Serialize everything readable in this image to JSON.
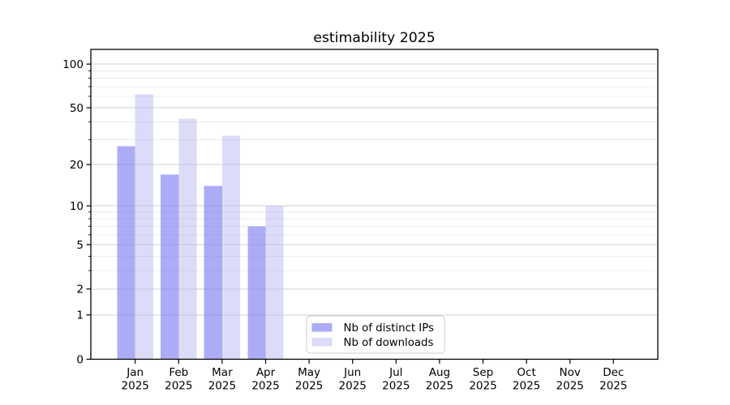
{
  "figure": {
    "title": "estimability 2025",
    "background": "#ffffff"
  },
  "chart_data": {
    "type": "bar",
    "title": "estimability 2025",
    "year": "2025",
    "categories": [
      "Jan",
      "Feb",
      "Mar",
      "Apr",
      "May",
      "Jun",
      "Jul",
      "Aug",
      "Sep",
      "Oct",
      "Nov",
      "Dec"
    ],
    "series": [
      {
        "name": "Nb of distinct IPs",
        "color": "rgba(127,127,241,0.65)",
        "values": [
          27,
          17,
          14,
          7,
          0,
          0,
          0,
          0,
          0,
          0,
          0,
          0
        ]
      },
      {
        "name": "Nb of downloads",
        "color": "rgba(177,177,240,0.45)",
        "values": [
          62,
          42,
          32,
          10,
          0,
          0,
          0,
          0,
          0,
          0,
          0,
          0
        ]
      }
    ],
    "yscale": "log1p",
    "ylim": [
      0,
      126
    ],
    "yticks": [
      0,
      1,
      2,
      5,
      10,
      20,
      50,
      100
    ],
    "yticks_minor": [
      3,
      4,
      6,
      7,
      8,
      9,
      30,
      40,
      60,
      70,
      80,
      90
    ],
    "grid": "horizontal",
    "legend_position": "lower-center"
  },
  "colors": {
    "grid_major": "#d2d2d2",
    "grid_minor": "#ececec",
    "axis": "#000000",
    "text": "#000000",
    "legend_border": "#cccccc",
    "legend_bg": "rgba(255,255,255,0.92)"
  }
}
